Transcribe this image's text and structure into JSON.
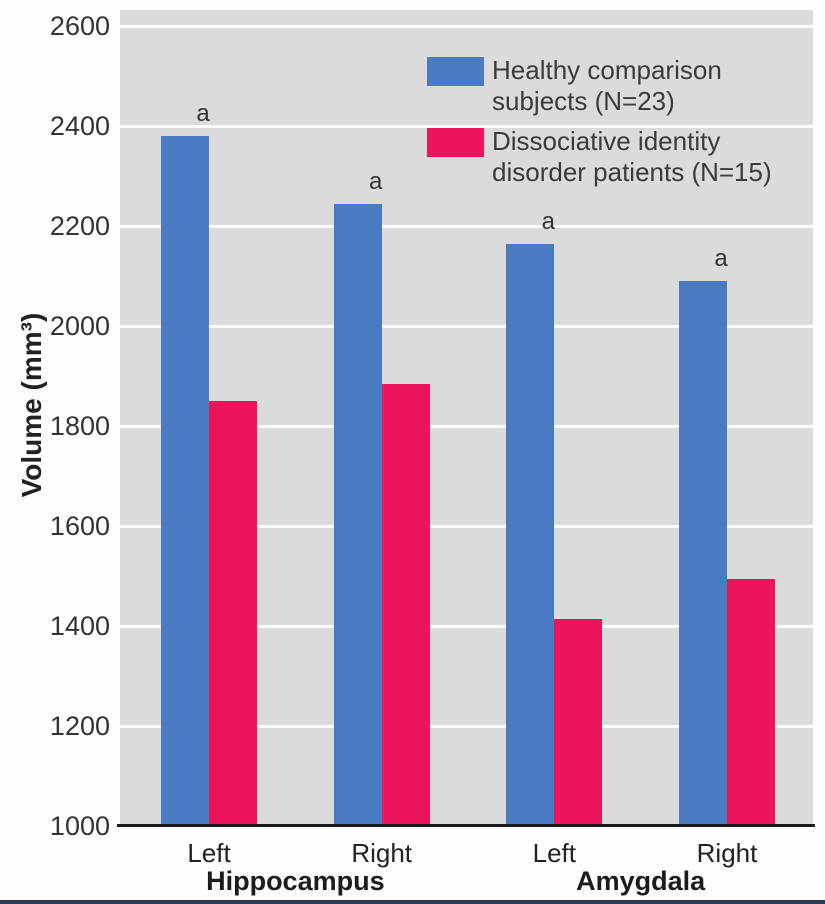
{
  "chart_data": {
    "type": "bar",
    "groups": [
      {
        "side": "Left",
        "region": "Hippocampus"
      },
      {
        "side": "Right",
        "region": "Hippocampus"
      },
      {
        "side": "Left",
        "region": "Amygdala"
      },
      {
        "side": "Right",
        "region": "Amygdala"
      }
    ],
    "region_labels": [
      "Hippocampus",
      "Amygdala"
    ],
    "series": [
      {
        "name": "Healthy comparison subjects (N=23)",
        "key": "healthy",
        "color": "#4a7bc2",
        "values": [
          2380,
          2245,
          2165,
          2090
        ],
        "marker": "a"
      },
      {
        "name": "Dissociative identity disorder patients (N=15)",
        "key": "did",
        "color": "#ec155c",
        "values": [
          1850,
          1885,
          1415,
          1495
        ],
        "marker": ""
      }
    ],
    "ylabel": "Volume (mm³)",
    "ylim": [
      1000,
      2600
    ],
    "ytick_step": 200,
    "yticks": [
      1000,
      1200,
      1400,
      1600,
      1800,
      2000,
      2200,
      2400,
      2600
    ],
    "grid": true,
    "legend_position": "top-right-inside",
    "significance_note": "a"
  },
  "legend": {
    "items": [
      {
        "lines": [
          "Healthy comparison",
          "subjects (N=23)"
        ],
        "color": "#4a7bc2"
      },
      {
        "lines": [
          "Dissociative identity",
          "disorder patients (N=15)"
        ],
        "color": "#ec155c"
      }
    ]
  },
  "axis": {
    "ylabel": "Volume (mm³)",
    "side_labels": [
      "Left",
      "Right",
      "Left",
      "Right"
    ],
    "region_labels": [
      "Hippocampus",
      "Amygdala"
    ]
  },
  "colors": {
    "plot_background": "#dbdbdb",
    "gridline": "#ffffff",
    "axis_line": "#1a1a1a",
    "text": "#333333",
    "bottom_strip": "#2e3a55",
    "page_background": "#fdfdfd"
  }
}
